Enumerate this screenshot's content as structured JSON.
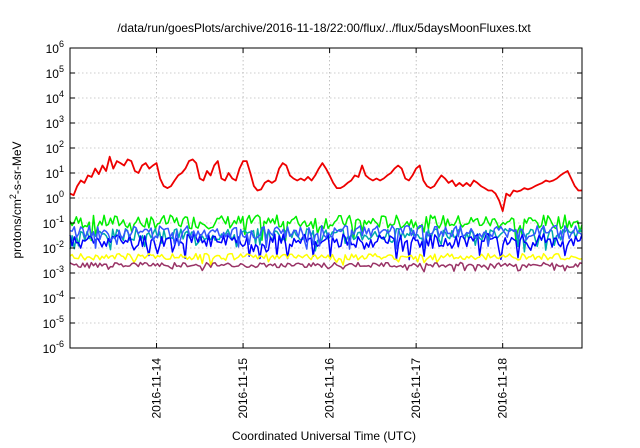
{
  "chart_data": {
    "type": "line",
    "title": "/data/run/goesPlots/archive/2016-11-18/22:00/flux/../flux/5daysMoonFluxes.txt",
    "xlabel": "Coordinated Universal Time (UTC)",
    "ylabel": {
      "base": "protons/cm",
      "exp": "2",
      "rest": "-s-sr-MeV"
    },
    "y_scale": "log",
    "ylim": [
      1e-06,
      1000000.0
    ],
    "y_ticks": [
      {
        "base": "10",
        "exp": "-6",
        "value": 1e-06
      },
      {
        "base": "10",
        "exp": "-5",
        "value": 1e-05
      },
      {
        "base": "10",
        "exp": "-4",
        "value": 0.0001
      },
      {
        "base": "10",
        "exp": "-3",
        "value": 0.001
      },
      {
        "base": "10",
        "exp": "-2",
        "value": 0.01
      },
      {
        "base": "10",
        "exp": "-1",
        "value": 0.1
      },
      {
        "base": "10",
        "exp": "0",
        "value": 1
      },
      {
        "base": "10",
        "exp": "1",
        "value": 10
      },
      {
        "base": "10",
        "exp": "2",
        "value": 100
      },
      {
        "base": "10",
        "exp": "3",
        "value": 1000
      },
      {
        "base": "10",
        "exp": "4",
        "value": 10000
      },
      {
        "base": "10",
        "exp": "5",
        "value": 100000
      },
      {
        "base": "10",
        "exp": "6",
        "value": 1000000
      }
    ],
    "xlim": [
      "2016-11-13T00:00",
      "2016-11-18T22:00"
    ],
    "x_ticks": [
      {
        "label": "2016-11-14",
        "value": "2016-11-14T00:00"
      },
      {
        "label": "2016-11-15",
        "value": "2016-11-15T00:00"
      },
      {
        "label": "2016-11-16",
        "value": "2016-11-16T00:00"
      },
      {
        "label": "2016-11-17",
        "value": "2016-11-17T00:00"
      },
      {
        "label": "2016-11-18",
        "value": "2016-11-18T00:00"
      }
    ],
    "grid": true,
    "series": [
      {
        "color": "#ee0000",
        "points": [
          [
            "2016-11-13T00:00",
            1.5
          ],
          [
            "2016-11-13T01:00",
            1.3
          ],
          [
            "2016-11-13T02:00",
            3
          ],
          [
            "2016-11-13T03:00",
            5
          ],
          [
            "2016-11-13T04:00",
            4
          ],
          [
            "2016-11-13T05:00",
            8
          ],
          [
            "2016-11-13T06:00",
            7
          ],
          [
            "2016-11-13T07:00",
            15
          ],
          [
            "2016-11-13T08:00",
            9
          ],
          [
            "2016-11-13T09:00",
            20
          ],
          [
            "2016-11-13T10:00",
            12
          ],
          [
            "2016-11-13T11:00",
            45
          ],
          [
            "2016-11-13T12:00",
            15
          ],
          [
            "2016-11-13T13:00",
            30
          ],
          [
            "2016-11-13T14:00",
            25
          ],
          [
            "2016-11-13T15:00",
            20
          ],
          [
            "2016-11-13T16:00",
            35
          ],
          [
            "2016-11-13T17:00",
            30
          ],
          [
            "2016-11-13T18:00",
            12
          ],
          [
            "2016-11-13T19:00",
            10
          ],
          [
            "2016-11-13T20:00",
            20
          ],
          [
            "2016-11-13T21:00",
            25
          ],
          [
            "2016-11-13T22:00",
            15
          ],
          [
            "2016-11-13T23:00",
            20
          ],
          [
            "2016-11-14T00:00",
            25
          ],
          [
            "2016-11-14T01:00",
            6
          ],
          [
            "2016-11-14T02:00",
            3
          ],
          [
            "2016-11-14T03:00",
            2.5
          ],
          [
            "2016-11-14T04:00",
            3
          ],
          [
            "2016-11-14T05:00",
            5
          ],
          [
            "2016-11-14T06:00",
            8
          ],
          [
            "2016-11-14T07:00",
            10
          ],
          [
            "2016-11-14T08:00",
            15
          ],
          [
            "2016-11-14T09:00",
            30
          ],
          [
            "2016-11-14T10:00",
            35
          ],
          [
            "2016-11-14T11:00",
            25
          ],
          [
            "2016-11-14T12:00",
            6
          ],
          [
            "2016-11-14T13:00",
            5
          ],
          [
            "2016-11-14T14:00",
            12
          ],
          [
            "2016-11-14T15:00",
            8
          ],
          [
            "2016-11-14T16:00",
            20
          ],
          [
            "2016-11-14T17:00",
            30
          ],
          [
            "2016-11-14T18:00",
            6
          ],
          [
            "2016-11-14T19:00",
            5
          ],
          [
            "2016-11-14T20:00",
            10
          ],
          [
            "2016-11-14T21:00",
            6
          ],
          [
            "2016-11-14T22:00",
            5
          ],
          [
            "2016-11-14T23:00",
            15
          ],
          [
            "2016-11-15T00:00",
            30
          ],
          [
            "2016-11-15T01:00",
            30
          ],
          [
            "2016-11-15T02:00",
            10
          ],
          [
            "2016-11-15T03:00",
            3
          ],
          [
            "2016-11-15T04:00",
            2
          ],
          [
            "2016-11-15T05:00",
            2.2
          ],
          [
            "2016-11-15T06:00",
            4
          ],
          [
            "2016-11-15T07:00",
            5
          ],
          [
            "2016-11-15T08:00",
            4
          ],
          [
            "2016-11-15T09:00",
            5
          ],
          [
            "2016-11-15T10:00",
            15
          ],
          [
            "2016-11-15T11:00",
            25
          ],
          [
            "2016-11-15T12:00",
            20
          ],
          [
            "2016-11-15T13:00",
            8
          ],
          [
            "2016-11-15T14:00",
            6
          ],
          [
            "2016-11-15T15:00",
            5
          ],
          [
            "2016-11-15T16:00",
            6
          ],
          [
            "2016-11-15T17:00",
            5
          ],
          [
            "2016-11-15T18:00",
            7
          ],
          [
            "2016-11-15T19:00",
            5
          ],
          [
            "2016-11-15T20:00",
            8
          ],
          [
            "2016-11-15T21:00",
            15
          ],
          [
            "2016-11-15T22:00",
            25
          ],
          [
            "2016-11-15T23:00",
            15
          ],
          [
            "2016-11-16T00:00",
            8
          ],
          [
            "2016-11-16T01:00",
            4
          ],
          [
            "2016-11-16T02:00",
            2.5
          ],
          [
            "2016-11-16T03:00",
            2.5
          ],
          [
            "2016-11-16T04:00",
            3
          ],
          [
            "2016-11-16T05:00",
            4
          ],
          [
            "2016-11-16T06:00",
            5
          ],
          [
            "2016-11-16T07:00",
            8
          ],
          [
            "2016-11-16T08:00",
            7
          ],
          [
            "2016-11-16T09:00",
            20
          ],
          [
            "2016-11-16T10:00",
            8
          ],
          [
            "2016-11-16T11:00",
            6
          ],
          [
            "2016-11-16T12:00",
            5
          ],
          [
            "2016-11-16T13:00",
            6
          ],
          [
            "2016-11-16T14:00",
            5
          ],
          [
            "2016-11-16T15:00",
            6
          ],
          [
            "2016-11-16T16:00",
            8
          ],
          [
            "2016-11-16T17:00",
            10
          ],
          [
            "2016-11-16T18:00",
            15
          ],
          [
            "2016-11-16T19:00",
            20
          ],
          [
            "2016-11-16T20:00",
            15
          ],
          [
            "2016-11-16T21:00",
            6
          ],
          [
            "2016-11-16T22:00",
            5
          ],
          [
            "2016-11-16T23:00",
            8
          ],
          [
            "2016-11-17T00:00",
            15
          ],
          [
            "2016-11-17T01:00",
            20
          ],
          [
            "2016-11-17T02:00",
            5
          ],
          [
            "2016-11-17T03:00",
            3
          ],
          [
            "2016-11-17T04:00",
            2.5
          ],
          [
            "2016-11-17T05:00",
            3
          ],
          [
            "2016-11-17T06:00",
            5
          ],
          [
            "2016-11-17T07:00",
            8
          ],
          [
            "2016-11-17T08:00",
            6
          ],
          [
            "2016-11-17T09:00",
            4
          ],
          [
            "2016-11-17T10:00",
            5
          ],
          [
            "2016-11-17T11:00",
            3
          ],
          [
            "2016-11-17T12:00",
            4
          ],
          [
            "2016-11-17T13:00",
            3
          ],
          [
            "2016-11-17T14:00",
            4
          ],
          [
            "2016-11-17T15:00",
            3
          ],
          [
            "2016-11-17T16:00",
            5
          ],
          [
            "2016-11-17T17:00",
            4
          ],
          [
            "2016-11-17T18:00",
            3
          ],
          [
            "2016-11-17T19:00",
            2.5
          ],
          [
            "2016-11-17T20:00",
            2
          ],
          [
            "2016-11-17T21:00",
            2
          ],
          [
            "2016-11-17T22:00",
            1.5
          ],
          [
            "2016-11-17T23:00",
            0.8
          ],
          [
            "2016-11-18T00:00",
            0.3
          ],
          [
            "2016-11-18T01:00",
            1.5
          ],
          [
            "2016-11-18T02:00",
            1.2
          ],
          [
            "2016-11-18T03:00",
            2
          ],
          [
            "2016-11-18T04:00",
            1.8
          ],
          [
            "2016-11-18T05:00",
            2
          ],
          [
            "2016-11-18T06:00",
            2.5
          ],
          [
            "2016-11-18T07:00",
            2.2
          ],
          [
            "2016-11-18T08:00",
            2.5
          ],
          [
            "2016-11-18T09:00",
            3
          ],
          [
            "2016-11-18T10:00",
            3.5
          ],
          [
            "2016-11-18T11:00",
            4
          ],
          [
            "2016-11-18T12:00",
            5
          ],
          [
            "2016-11-18T13:00",
            4.5
          ],
          [
            "2016-11-18T14:00",
            5
          ],
          [
            "2016-11-18T15:00",
            6
          ],
          [
            "2016-11-18T16:00",
            8
          ],
          [
            "2016-11-18T17:00",
            10
          ],
          [
            "2016-11-18T18:00",
            12
          ],
          [
            "2016-11-18T19:00",
            6
          ],
          [
            "2016-11-18T20:00",
            3
          ],
          [
            "2016-11-18T21:00",
            2
          ],
          [
            "2016-11-18T22:00",
            2
          ]
        ]
      },
      {
        "color": "#00ee00",
        "base": 0.11,
        "jitter": 0.55,
        "seed": 7
      },
      {
        "color": "#00aaaa",
        "base": 0.035,
        "jitter": 0.5,
        "seed": 3
      },
      {
        "color": "#0000ff",
        "base": 0.02,
        "jitter": 0.55,
        "seed": 11
      },
      {
        "color": "#3355ff",
        "base": 0.045,
        "jitter": 0.5,
        "seed": 13
      },
      {
        "color": "#ffff00",
        "base": 0.0045,
        "jitter": 0.25,
        "seed": 19
      },
      {
        "color": "#993366",
        "base": 0.0021,
        "jitter": 0.2,
        "seed": 23
      }
    ]
  }
}
